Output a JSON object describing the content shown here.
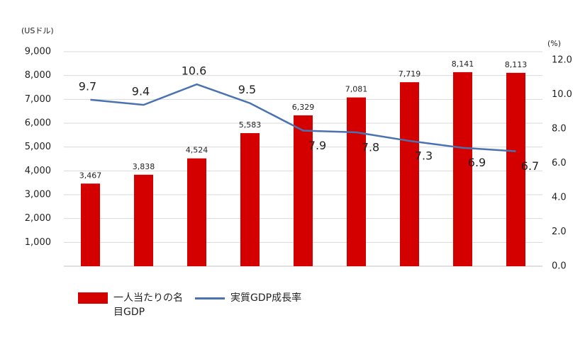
{
  "chart_data": {
    "type": "bar",
    "y_label": "(USドル)",
    "y2_label": "(%)",
    "categories": [
      null,
      null,
      null,
      null,
      null,
      null,
      null,
      null,
      null
    ],
    "series": [
      {
        "name": "一人当たりの名目GDP",
        "type": "bar",
        "color": "#d40000",
        "values": [
          3467,
          3838,
          4524,
          5583,
          6329,
          7081,
          7719,
          8141,
          8113
        ],
        "value_labels": [
          "3,467",
          "3,838",
          "4,524",
          "5,583",
          "6,329",
          "7,081",
          "7,719",
          "8,141",
          "8,113"
        ]
      },
      {
        "name": "実質GDP成長率",
        "type": "line",
        "axis": "y2",
        "color": "#4a72b0",
        "values": [
          9.7,
          9.4,
          10.6,
          9.5,
          7.9,
          7.8,
          7.3,
          6.9,
          6.7
        ]
      }
    ],
    "ylim": [
      0,
      9000
    ],
    "yticks": [
      {
        "value": 1000,
        "label": "1,000"
      },
      {
        "value": 2000,
        "label": "2,000"
      },
      {
        "value": 3000,
        "label": "3,000"
      },
      {
        "value": 4000,
        "label": "4,000"
      },
      {
        "value": 5000,
        "label": "5,000"
      },
      {
        "value": 6000,
        "label": "6,000"
      },
      {
        "value": 7000,
        "label": "7,000"
      },
      {
        "value": 8000,
        "label": "8,000"
      },
      {
        "value": 9000,
        "label": "9,000"
      }
    ],
    "y2lim": [
      0,
      12.5
    ],
    "y2ticks": [
      {
        "value": 0,
        "label": "0.0"
      },
      {
        "value": 2,
        "label": "2.0"
      },
      {
        "value": 4,
        "label": "4.0"
      },
      {
        "value": 6,
        "label": "6.0"
      },
      {
        "value": 8,
        "label": "8.0"
      },
      {
        "value": 10,
        "label": "10.0"
      },
      {
        "value": 12,
        "label": "12.0"
      }
    ],
    "grid": true
  }
}
